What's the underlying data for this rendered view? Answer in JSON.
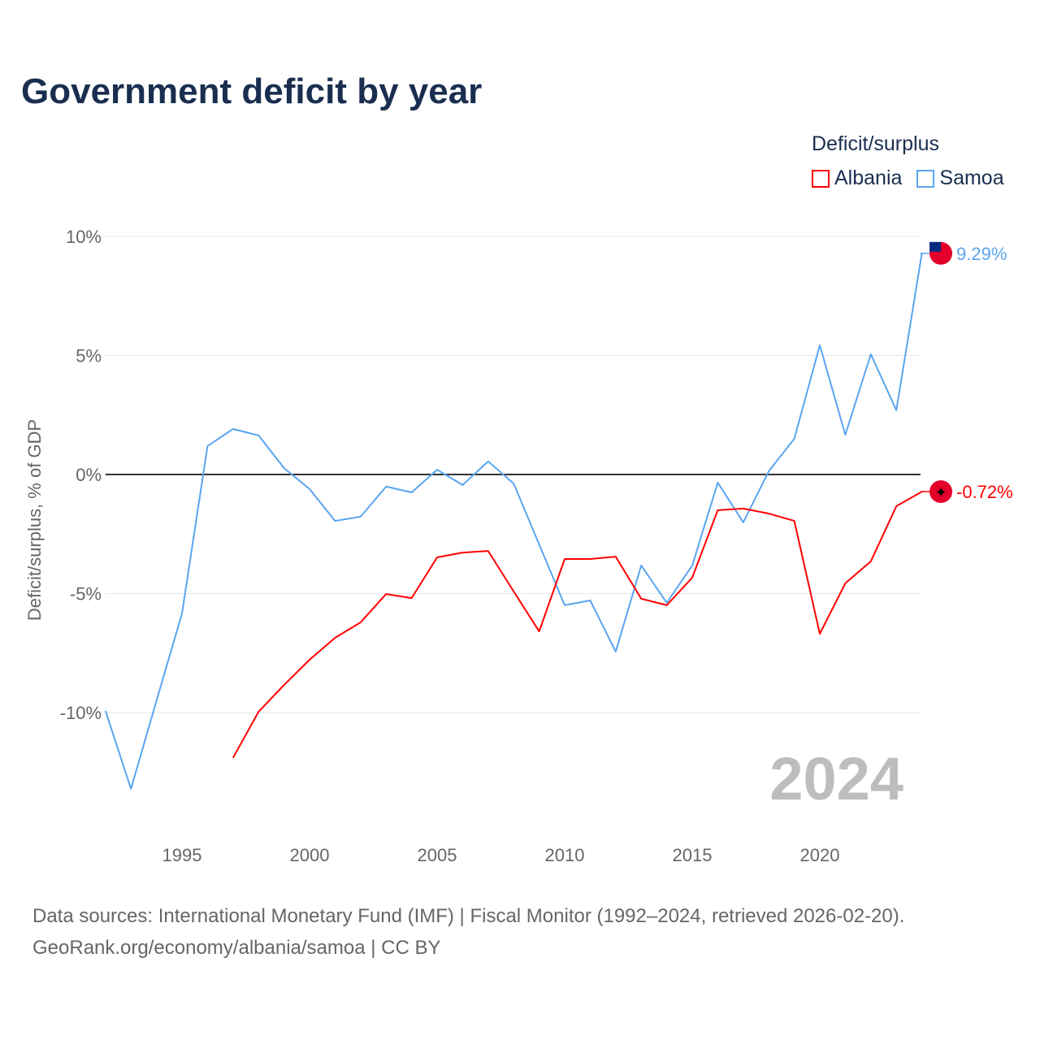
{
  "title": "Government deficit by year",
  "legend": {
    "title": "Deficit/surplus",
    "items": [
      {
        "label": "Albania",
        "color": "#ff0000"
      },
      {
        "label": "Samoa",
        "color": "#5aa5f0"
      }
    ]
  },
  "watermark_year": "2024",
  "source": {
    "line1": "Data sources: International Monetary Fund (IMF) | Fiscal Monitor (1992–2024, retrieved 2026-02-20).",
    "line2": "GeoRank.org/economy/albania/samoa | CC BY"
  },
  "chart_data": {
    "type": "line",
    "title": "Government deficit by year",
    "xlabel": "",
    "ylabel": "Deficit/surplus, % of GDP",
    "xlim": [
      1992,
      2024
    ],
    "ylim": [
      -14,
      10
    ],
    "x_ticks": [
      1995,
      2000,
      2005,
      2010,
      2015,
      2020
    ],
    "x_tick_labels": [
      "1995",
      "2000",
      "2005",
      "2010",
      "2015",
      "2020"
    ],
    "y_ticks": [
      10,
      5,
      0,
      -5,
      -10
    ],
    "y_tick_labels": [
      "10%",
      "5%",
      "0%",
      "-5%",
      "-10%"
    ],
    "series": [
      {
        "name": "Samoa",
        "color": "#5aa5f0",
        "end_label": "9.29%",
        "x": [
          1992,
          1993,
          1994,
          1995,
          1996,
          1997,
          1998,
          1999,
          2000,
          2001,
          2002,
          2003,
          2004,
          2005,
          2006,
          2007,
          2008,
          2009,
          2010,
          2011,
          2012,
          2013,
          2014,
          2015,
          2016,
          2017,
          2018,
          2019,
          2020,
          2021,
          2022,
          2023,
          2024
        ],
        "values": [
          -9.93,
          -13.2,
          -9.5,
          -5.84,
          1.19,
          1.91,
          1.64,
          0.27,
          -0.61,
          -1.95,
          -1.77,
          -0.51,
          -0.75,
          0.2,
          -0.44,
          0.55,
          -0.38,
          -2.94,
          -5.49,
          -5.29,
          -7.44,
          -3.82,
          -5.39,
          -3.82,
          -0.34,
          -2.01,
          0.14,
          1.5,
          5.43,
          1.67,
          5.05,
          2.7,
          9.29
        ]
      },
      {
        "name": "Albania",
        "color": "#ff0000",
        "end_label": "-0.72%",
        "x": [
          1997,
          1998,
          1999,
          2000,
          2001,
          2002,
          2003,
          2004,
          2005,
          2006,
          2007,
          2008,
          2009,
          2010,
          2011,
          2012,
          2013,
          2014,
          2015,
          2016,
          2017,
          2018,
          2019,
          2020,
          2021,
          2022,
          2023,
          2024
        ],
        "values": [
          -11.9,
          -9.97,
          -8.84,
          -7.78,
          -6.86,
          -6.21,
          -5.02,
          -5.19,
          -3.48,
          -3.28,
          -3.21,
          -4.91,
          -6.59,
          -3.55,
          -3.55,
          -3.45,
          -5.22,
          -5.49,
          -4.33,
          -1.5,
          -1.43,
          -1.64,
          -1.95,
          -6.69,
          -4.57,
          -3.65,
          -1.33,
          -0.72
        ]
      }
    ]
  }
}
